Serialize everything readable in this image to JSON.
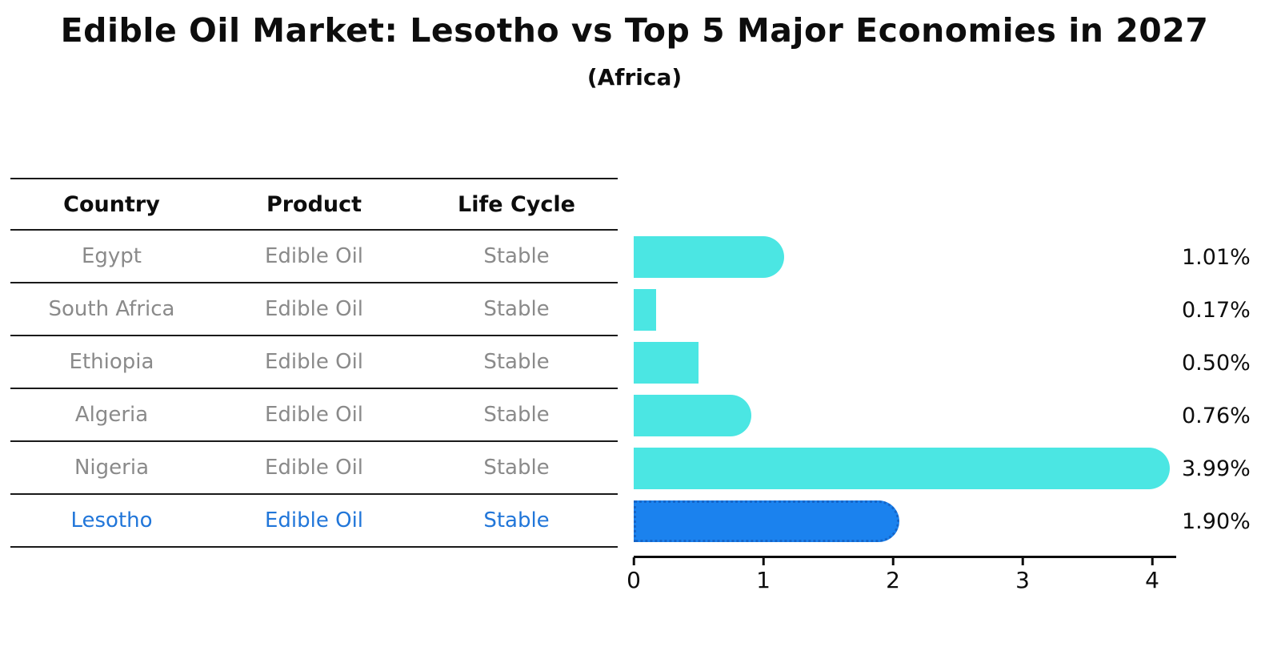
{
  "title": "Edible Oil Market: Lesotho vs Top 5 Major Economies in 2027",
  "subtitle": "(Africa)",
  "table": {
    "columns": [
      "Country",
      "Product",
      "Life Cycle"
    ],
    "rows": [
      {
        "country": "Egypt",
        "product": "Edible Oil",
        "life_cycle": "Stable",
        "highlight": false
      },
      {
        "country": "South Africa",
        "product": "Edible Oil",
        "life_cycle": "Stable",
        "highlight": false
      },
      {
        "country": "Ethiopia",
        "product": "Edible Oil",
        "life_cycle": "Stable",
        "highlight": false
      },
      {
        "country": "Algeria",
        "product": "Edible Oil",
        "life_cycle": "Stable",
        "highlight": false
      },
      {
        "country": "Nigeria",
        "product": "Edible Oil",
        "life_cycle": "Stable",
        "highlight": false
      },
      {
        "country": "Lesotho",
        "product": "Edible Oil",
        "life_cycle": "Stable",
        "highlight": true
      }
    ]
  },
  "chart_data": {
    "type": "bar",
    "orientation": "horizontal",
    "title": "Edible Oil Market: Lesotho vs Top 5 Major Economies in 2027",
    "subtitle": "(Africa)",
    "categories": [
      "Egypt",
      "South Africa",
      "Ethiopia",
      "Algeria",
      "Nigeria",
      "Lesotho"
    ],
    "values": [
      1.01,
      0.17,
      0.5,
      0.76,
      3.99,
      1.9
    ],
    "value_labels": [
      "1.01%",
      "0.17%",
      "0.50%",
      "0.76%",
      "3.99%",
      "1.90%"
    ],
    "highlight_category": "Lesotho",
    "x_ticks": [
      0,
      1,
      2,
      3,
      4
    ],
    "xlim": [
      0,
      4.19
    ],
    "grid": false,
    "legend": "none",
    "colors": {
      "bar": "#4be6e3",
      "highlight_bar": "#1b82ee",
      "highlight_border": "#1565c8",
      "highlight_text": "#2176d9",
      "row_text": "#8a8a8a",
      "axis": "#0d0d0d"
    }
  }
}
